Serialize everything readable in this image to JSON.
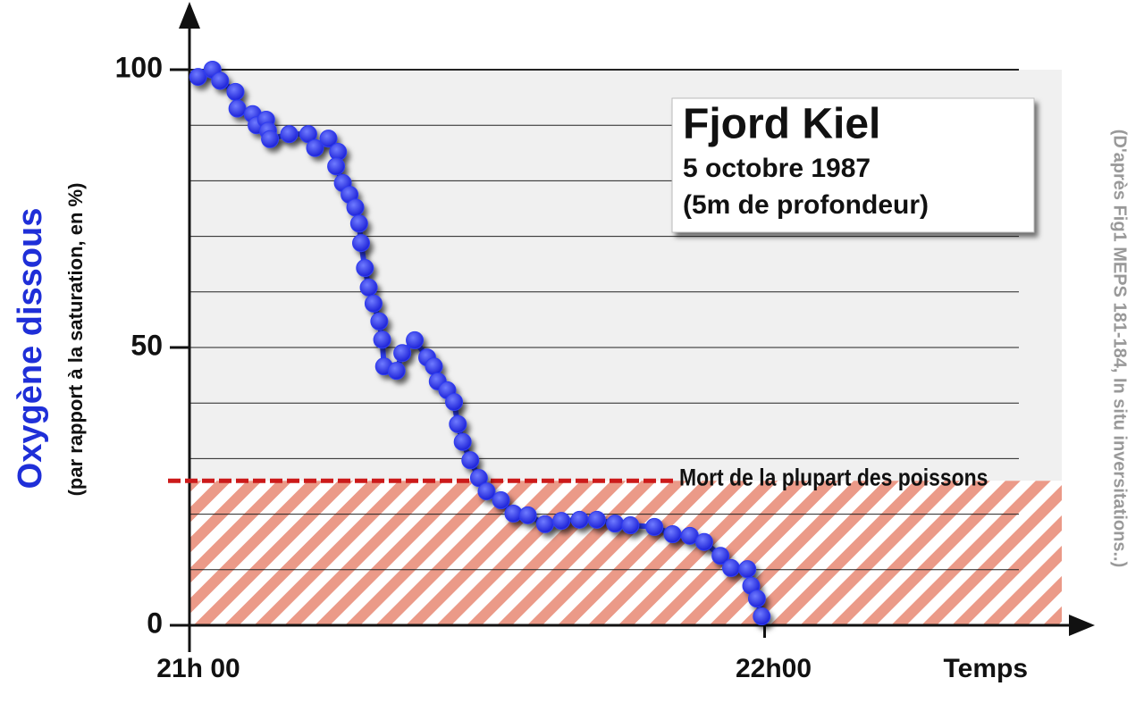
{
  "chart_data": {
    "type": "line",
    "title": "Fjord Kiel",
    "subtitle": [
      "5 octobre 1987",
      "(5m de profondeur)"
    ],
    "ylabel": "Oxygène dissous",
    "ylabel_sub": "(par rapport à la saturation, en %)",
    "xlabel": "Temps",
    "source": "(D'après Fig1 MEPS 181-184, In situ inversitations..)",
    "threshold": {
      "value": 26,
      "label": "Mort de la plupart des poissons"
    },
    "xlim": [
      0,
      91
    ],
    "xticks": [
      {
        "value": 0,
        "label": "21h 00"
      },
      {
        "value": 60,
        "label": "22h00"
      }
    ],
    "ylim": [
      0,
      100
    ],
    "yticks": [
      0,
      50,
      100
    ],
    "y_gridlines": [
      10,
      20,
      30,
      40,
      50,
      60,
      70,
      80,
      90,
      100
    ],
    "color": "#2f3cf0",
    "x": [
      0.9,
      2.4,
      3.2,
      4.8,
      5.0,
      6.6,
      7.0,
      8.0,
      8.2,
      8.4,
      10.4,
      12.4,
      13.1,
      14.5,
      15.5,
      15.3,
      16.0,
      16.7,
      17.3,
      17.7,
      17.9,
      18.3,
      18.7,
      19.2,
      19.8,
      20.1,
      20.3,
      21.6,
      22.2,
      23.5,
      24.8,
      25.5,
      25.9,
      26.9,
      27.6,
      28.0,
      28.5,
      29.3,
      30.2,
      31.0,
      32.5,
      33.8,
      35.3,
      37.1,
      38.8,
      40.7,
      42.5,
      44.4,
      46.0,
      48.5,
      50.4,
      52.2,
      53.7,
      55.4,
      56.5,
      58.2,
      58.6,
      59.2,
      59.7
    ],
    "values": [
      98.7,
      100,
      98,
      96,
      93,
      92,
      90,
      91,
      89,
      87.5,
      88.4,
      88.4,
      85.9,
      87.6,
      85.2,
      82.6,
      79.6,
      77.5,
      75.2,
      72.3,
      68.8,
      64.3,
      60.8,
      57.9,
      54.7,
      51.4,
      46.6,
      45.8,
      49.0,
      51.3,
      48.2,
      46.6,
      43.9,
      42.3,
      40.2,
      36.2,
      33.0,
      29.7,
      26.5,
      24.1,
      22.5,
      20.1,
      19.8,
      18.2,
      18.8,
      19.0,
      19.0,
      18.3,
      18.0,
      17.7,
      16.4,
      16.1,
      15.0,
      12.5,
      10.3,
      10.1,
      7.1,
      4.8,
      1.6
    ]
  }
}
